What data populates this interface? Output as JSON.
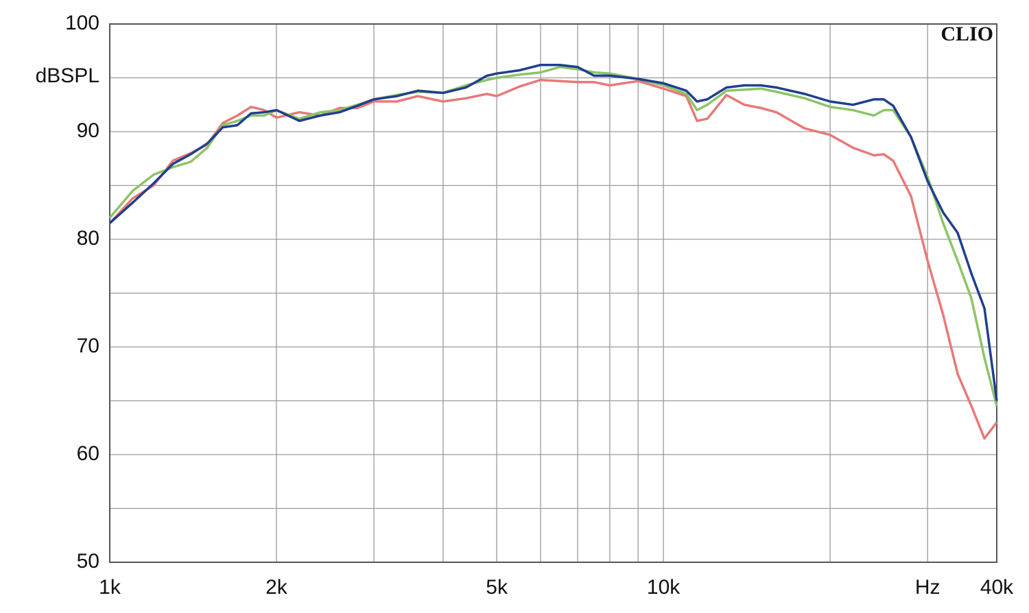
{
  "chart_data": {
    "type": "line",
    "xscale": "log",
    "grid": true,
    "ylabel": "dBSPL",
    "annotation": "CLIO",
    "xlim": [
      1000,
      40000
    ],
    "ylim": [
      50,
      100
    ],
    "xticks": [
      {
        "value": 1000,
        "label": "1k"
      },
      {
        "value": 2000,
        "label": "2k"
      },
      {
        "value": 5000,
        "label": "5k"
      },
      {
        "value": 10000,
        "label": "10k"
      },
      {
        "value": 30000,
        "label": "Hz"
      },
      {
        "value": 40000,
        "label": "40k"
      }
    ],
    "xminor": [
      3000,
      4000,
      6000,
      7000,
      8000,
      9000,
      20000
    ],
    "yticks": [
      50,
      60,
      70,
      80,
      90,
      100
    ],
    "yminor": [
      55,
      65,
      75,
      85,
      95
    ],
    "x": [
      1000,
      1100,
      1200,
      1300,
      1400,
      1500,
      1600,
      1700,
      1800,
      1900,
      2000,
      2200,
      2400,
      2600,
      2800,
      3000,
      3300,
      3600,
      4000,
      4400,
      4800,
      5000,
      5500,
      6000,
      6500,
      7000,
      7500,
      8000,
      9000,
      10000,
      11000,
      11500,
      12000,
      13000,
      14000,
      15000,
      16000,
      18000,
      20000,
      22000,
      24000,
      25000,
      26000,
      28000,
      30000,
      32000,
      34000,
      36000,
      38000,
      40000
    ],
    "series": [
      {
        "color": "#e87878",
        "values": [
          81.5,
          83.8,
          85,
          87.3,
          88,
          88.8,
          90.8,
          91.5,
          92.3,
          92,
          91.3,
          91.8,
          91.5,
          92.2,
          92.2,
          92.8,
          92.8,
          93.3,
          92.8,
          93.1,
          93.5,
          93.3,
          94.2,
          94.8,
          94.7,
          94.6,
          94.6,
          94.3,
          94.7,
          94,
          93.3,
          91,
          91.2,
          93.4,
          92.5,
          92.2,
          91.8,
          90.3,
          89.7,
          88.5,
          87.8,
          87.9,
          87.3,
          84,
          78,
          73,
          67.5,
          64.5,
          61.5,
          63
        ]
      },
      {
        "color": "#8cc466",
        "values": [
          82,
          84.5,
          86,
          86.7,
          87.2,
          88.5,
          90.6,
          91,
          91.5,
          91.5,
          92,
          91.2,
          91.8,
          92,
          92.5,
          93,
          93.4,
          93.7,
          93.6,
          94.3,
          94.8,
          95,
          95.3,
          95.5,
          96,
          95.8,
          95.5,
          95.4,
          94.9,
          94.3,
          93.5,
          92,
          92.5,
          93.8,
          93.9,
          94,
          93.7,
          93.1,
          92.3,
          92,
          91.5,
          92,
          92,
          89.5,
          85.8,
          81.5,
          78,
          74.5,
          69,
          64.5
        ]
      },
      {
        "color": "#1f3f8f",
        "values": [
          81.5,
          83.4,
          85.2,
          87,
          87.9,
          88.9,
          90.4,
          90.6,
          91.7,
          91.8,
          92,
          91,
          91.5,
          91.8,
          92.4,
          93,
          93.3,
          93.8,
          93.6,
          94.1,
          95.2,
          95.4,
          95.7,
          96.2,
          96.2,
          96,
          95.2,
          95.2,
          94.9,
          94.5,
          93.8,
          92.8,
          93,
          94.1,
          94.3,
          94.3,
          94.1,
          93.5,
          92.8,
          92.5,
          93,
          93,
          92.4,
          89.5,
          85.4,
          82.5,
          80.6,
          76.8,
          73.6,
          65
        ]
      }
    ]
  }
}
